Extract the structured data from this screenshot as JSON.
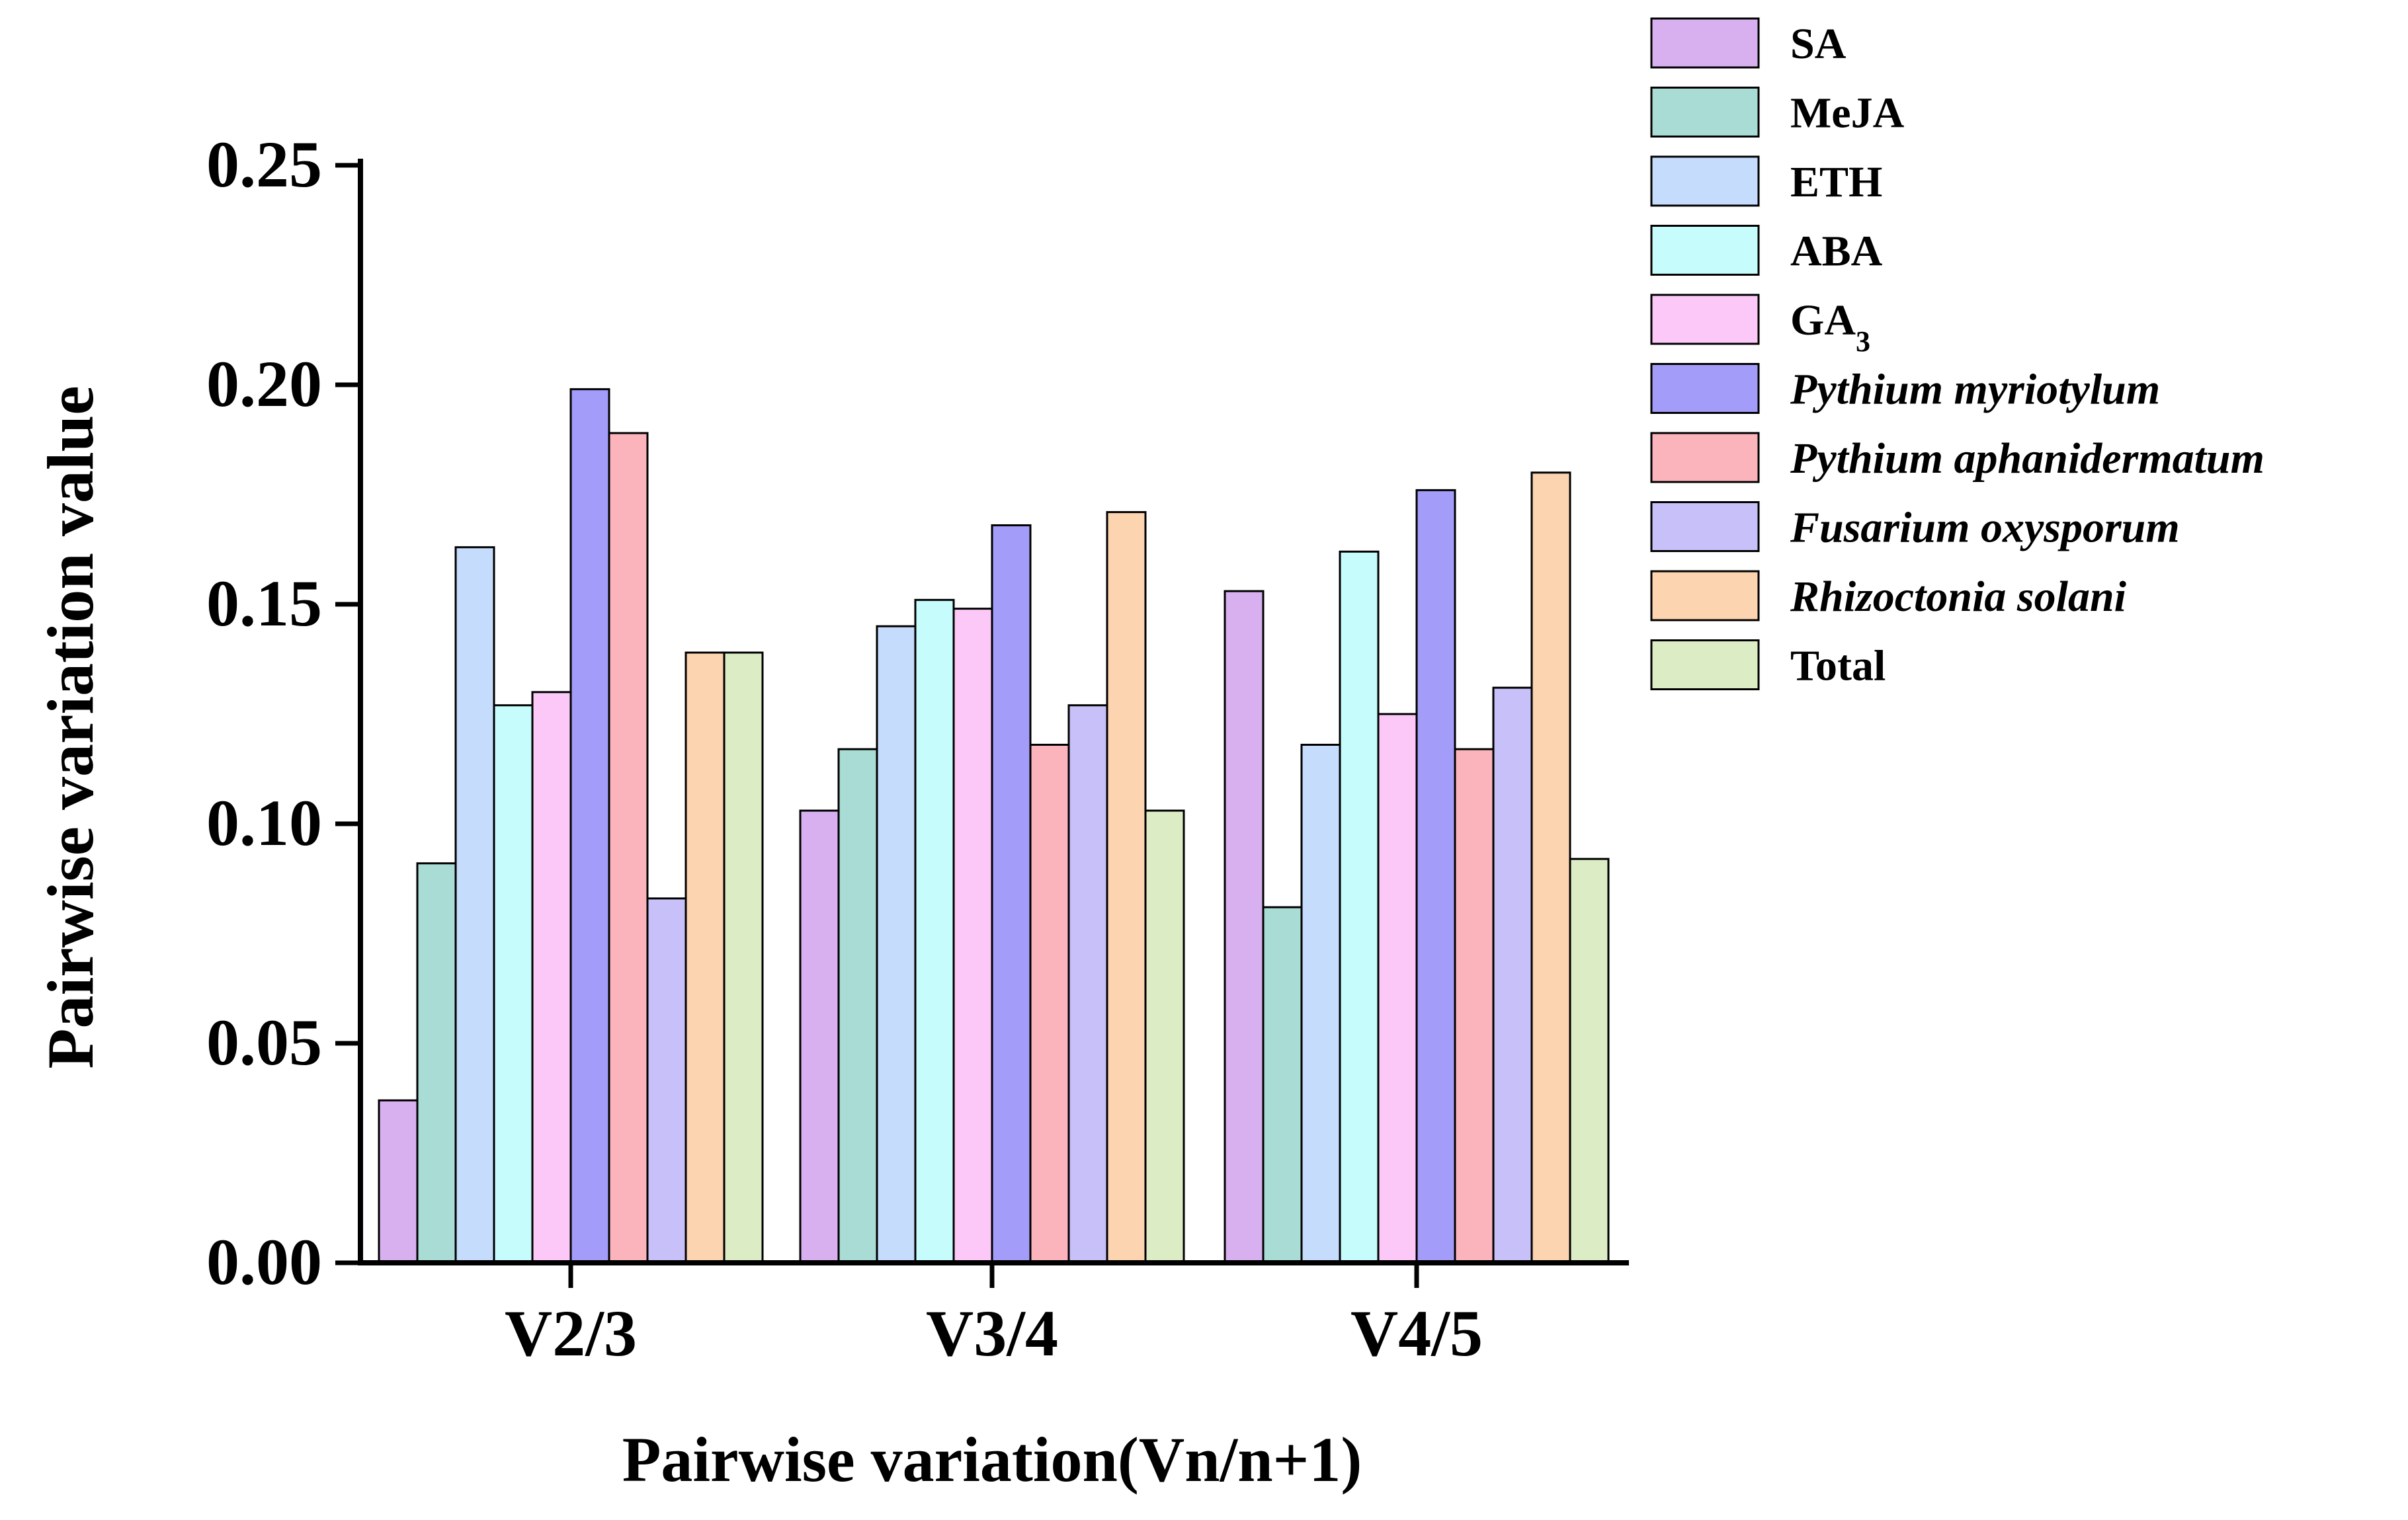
{
  "chart_data": {
    "type": "bar",
    "title": "",
    "xlabel": "Pairwise variation(Vn/n+1)",
    "ylabel": "Pairwise variation value",
    "ylim": [
      0,
      0.25
    ],
    "yticks": [
      "0.00",
      "0.05",
      "0.10",
      "0.15",
      "0.20",
      "0.25"
    ],
    "categories": [
      "V2/3",
      "V3/4",
      "V4/5"
    ],
    "grid": false,
    "legend_position": "top-right",
    "series": [
      {
        "name": "SA",
        "label_main": "SA",
        "label_sub": "",
        "italic": false,
        "color": "#d8b0f0",
        "values": [
          0.037,
          0.103,
          0.153
        ]
      },
      {
        "name": "MeJA",
        "label_main": "MeJA",
        "label_sub": "",
        "italic": false,
        "color": "#a8dcd4",
        "values": [
          0.091,
          0.117,
          0.081
        ]
      },
      {
        "name": "ETH",
        "label_main": "ETH",
        "label_sub": "",
        "italic": false,
        "color": "#c6dcfc",
        "values": [
          0.163,
          0.145,
          0.118
        ]
      },
      {
        "name": "ABA",
        "label_main": "ABA",
        "label_sub": "",
        "italic": false,
        "color": "#c6fcfc",
        "values": [
          0.127,
          0.151,
          0.162
        ]
      },
      {
        "name": "GA3",
        "label_main": "GA",
        "label_sub": "3",
        "italic": false,
        "color": "#fcc8f8",
        "values": [
          0.13,
          0.149,
          0.125
        ]
      },
      {
        "name": "Pythium myriotylum",
        "label_main": "Pythium myriotylum",
        "label_sub": "",
        "italic": true,
        "color": "#a39df9",
        "values": [
          0.199,
          0.168,
          0.176
        ]
      },
      {
        "name": "Pythium aphanidermatum",
        "label_main": "Pythium aphanidermatum",
        "label_sub": "",
        "italic": true,
        "color": "#fcb4bc",
        "values": [
          0.189,
          0.118,
          0.117
        ]
      },
      {
        "name": "Fusarium oxysporum",
        "label_main": "Fusarium oxysporum",
        "label_sub": "",
        "italic": true,
        "color": "#c8c0f8",
        "values": [
          0.083,
          0.127,
          0.131
        ]
      },
      {
        "name": "Rhizoctonia solani",
        "label_main": "Rhizoctonia solani",
        "label_sub": "",
        "italic": true,
        "color": "#fcd4b0",
        "values": [
          0.139,
          0.171,
          0.18
        ]
      },
      {
        "name": "Total",
        "label_main": "Total",
        "label_sub": "",
        "italic": false,
        "color": "#dcecc4",
        "values": [
          0.139,
          0.103,
          0.092
        ]
      }
    ]
  }
}
